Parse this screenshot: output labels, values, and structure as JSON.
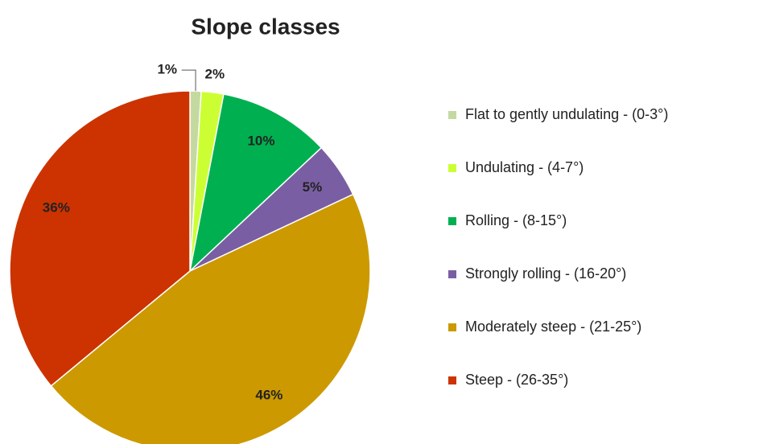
{
  "chart_data": {
    "type": "pie",
    "title": "Slope classes",
    "categories": [
      "Flat to gently undulating - (0-3°)",
      "Undulating - (4-7°)",
      "Rolling - (8-15°)",
      "Strongly rolling - (16-20°)",
      "Moderately steep - (21-25°)",
      "Steep - (26-35°)"
    ],
    "values": [
      1,
      2,
      10,
      5,
      46,
      36
    ],
    "value_labels": [
      "1%",
      "2%",
      "10%",
      "5%",
      "46%",
      "36%"
    ],
    "colors": [
      "#c4d9a0",
      "#ccff33",
      "#00b050",
      "#7a5ea3",
      "#cc9900",
      "#cc3300"
    ],
    "legend": "right"
  }
}
